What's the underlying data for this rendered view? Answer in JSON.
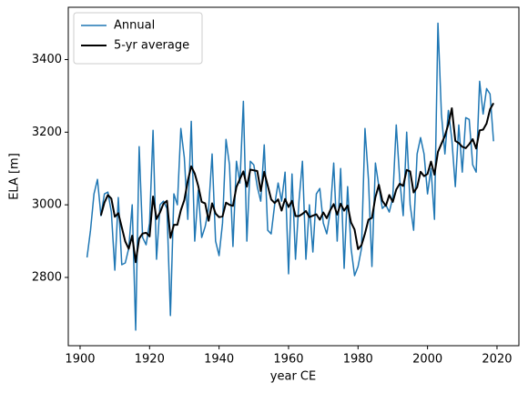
{
  "chart_data": {
    "type": "line",
    "xlabel": "year CE",
    "ylabel": "ELA [m]",
    "x": [
      1902,
      1903,
      1904,
      1905,
      1906,
      1907,
      1908,
      1909,
      1910,
      1911,
      1912,
      1913,
      1914,
      1915,
      1916,
      1917,
      1918,
      1919,
      1920,
      1921,
      1922,
      1923,
      1924,
      1925,
      1926,
      1927,
      1928,
      1929,
      1930,
      1931,
      1932,
      1933,
      1934,
      1935,
      1936,
      1937,
      1938,
      1939,
      1940,
      1941,
      1942,
      1943,
      1944,
      1945,
      1946,
      1947,
      1948,
      1949,
      1950,
      1951,
      1952,
      1953,
      1954,
      1955,
      1956,
      1957,
      1958,
      1959,
      1960,
      1961,
      1962,
      1963,
      1964,
      1965,
      1966,
      1967,
      1968,
      1969,
      1970,
      1971,
      1972,
      1973,
      1974,
      1975,
      1976,
      1977,
      1978,
      1979,
      1980,
      1981,
      1982,
      1983,
      1984,
      1985,
      1986,
      1987,
      1988,
      1989,
      1990,
      1991,
      1992,
      1993,
      1994,
      1995,
      1996,
      1997,
      1998,
      1999,
      2000,
      2001,
      2002,
      2003,
      2004,
      2005,
      2006,
      2007,
      2008,
      2009,
      2010,
      2011,
      2012,
      2013,
      2014,
      2015,
      2016,
      2017,
      2018,
      2019
    ],
    "series": [
      {
        "name": "Annual",
        "color": "#1f77b4",
        "width": 1.5,
        "values": [
          2855,
          2930,
          3030,
          3070,
          2970,
          3030,
          3035,
          2980,
          2820,
          3020,
          2835,
          2840,
          2880,
          3000,
          2655,
          3160,
          2910,
          2890,
          2950,
          3205,
          2850,
          3000,
          3010,
          2990,
          2695,
          3030,
          3000,
          3210,
          3130,
          2960,
          3230,
          2900,
          3040,
          2910,
          2940,
          2990,
          3140,
          2900,
          2860,
          2950,
          3180,
          3110,
          2885,
          3120,
          3060,
          3285,
          2900,
          3120,
          3110,
          3050,
          3010,
          3165,
          2930,
          2920,
          3000,
          3060,
          3010,
          3090,
          2810,
          3085,
          2850,
          3010,
          3120,
          2850,
          3000,
          2870,
          3030,
          3045,
          2950,
          2920,
          2980,
          3115,
          2900,
          3100,
          2825,
          3050,
          2880,
          2805,
          2830,
          2880,
          3210,
          3070,
          2830,
          3115,
          3050,
          2990,
          3000,
          2980,
          3020,
          3220,
          3070,
          2970,
          3200,
          3000,
          2930,
          3140,
          3185,
          3140,
          3030,
          3100,
          2960,
          3500,
          3250,
          3140,
          3260,
          3180,
          3050,
          3220,
          3090,
          3240,
          3235,
          3110,
          3090,
          3340,
          3250,
          3320,
          3305,
          3175
        ]
      },
      {
        "name": "5-yr average",
        "color": "#000000",
        "width": 2,
        "values": [
          null,
          null,
          null,
          null,
          2971,
          3006,
          3027,
          3017,
          2967,
          2977,
          2938,
          2899,
          2879,
          2915,
          2842,
          2907,
          2921,
          2923,
          2913,
          3023,
          2961,
          2979,
          3003,
          3011,
          2909,
          2945,
          2945,
          2985,
          3013,
          3066,
          3106,
          3086,
          3052,
          3008,
          3004,
          2956,
          3004,
          2976,
          2966,
          2968,
          3006,
          3000,
          2997,
          3049,
          3071,
          3092,
          3050,
          3097,
          3095,
          3093,
          3038,
          3091,
          3053,
          3015,
          3005,
          3015,
          2984,
          3016,
          2994,
          3011,
          2969,
          2969,
          2975,
          2983,
          2966,
          2970,
          2974,
          2959,
          2979,
          2963,
          2985,
          3002,
          2973,
          3003,
          2984,
          2998,
          2951,
          2932,
          2878,
          2889,
          2921,
          2959,
          2964,
          3021,
          3055,
          3011,
          2997,
          3027,
          3008,
          3042,
          3058,
          3052,
          3096,
          3092,
          3034,
          3048,
          3091,
          3079,
          3085,
          3119,
          3083,
          3146,
          3168,
          3190,
          3222,
          3266,
          3176,
          3170,
          3160,
          3156,
          3167,
          3181,
          3155,
          3205,
          3207,
          3224,
          3263,
          3280
        ]
      }
    ],
    "xlim": [
      1896.6,
      2026.3
    ],
    "xticks": [
      1900,
      1920,
      1940,
      1960,
      1980,
      2000,
      2020
    ],
    "ylim": [
      2612,
      3544
    ],
    "yticks": [
      2800,
      3000,
      3200,
      3400
    ],
    "legend": "upper left"
  }
}
